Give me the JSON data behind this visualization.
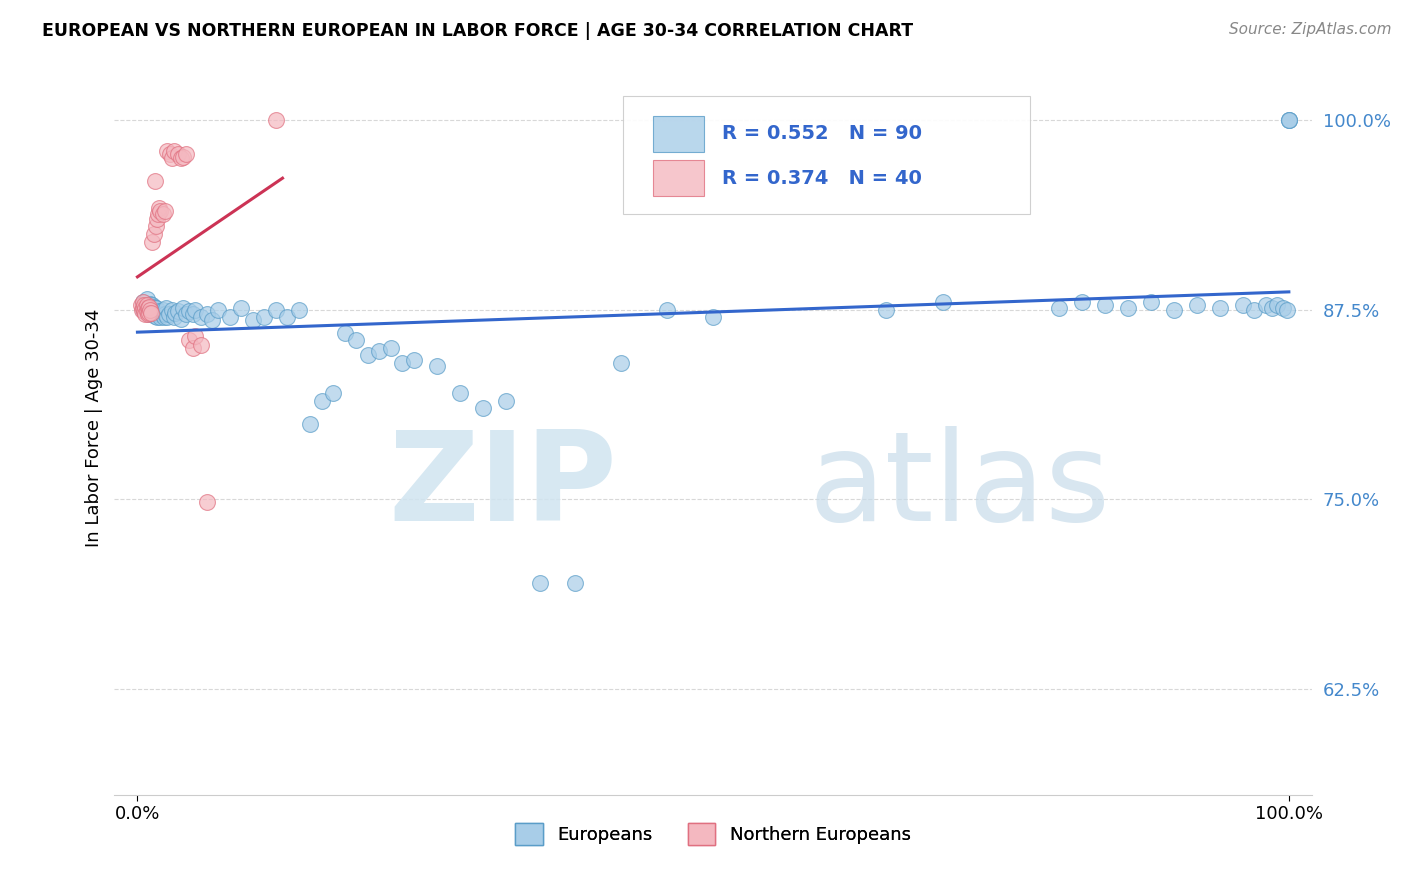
{
  "title": "EUROPEAN VS NORTHERN EUROPEAN IN LABOR FORCE | AGE 30-34 CORRELATION CHART",
  "source": "Source: ZipAtlas.com",
  "ylabel": "In Labor Force | Age 30-34",
  "y_tick_labels": [
    "62.5%",
    "75.0%",
    "87.5%",
    "100.0%"
  ],
  "y_tick_values": [
    0.625,
    0.75,
    0.875,
    1.0
  ],
  "xlim": [
    -0.02,
    1.02
  ],
  "ylim": [
    0.555,
    1.04
  ],
  "blue_color": "#a8cde8",
  "pink_color": "#f4b8c0",
  "blue_edge_color": "#5a9dc8",
  "pink_edge_color": "#e07080",
  "blue_line_color": "#3366cc",
  "pink_line_color": "#cc3355",
  "r_blue": 0.552,
  "n_blue": 90,
  "r_pink": 0.374,
  "n_pink": 40,
  "blue_x": [
    0.005,
    0.005,
    0.007,
    0.008,
    0.009,
    0.01,
    0.01,
    0.011,
    0.011,
    0.012,
    0.012,
    0.013,
    0.013,
    0.014,
    0.014,
    0.015,
    0.015,
    0.016,
    0.016,
    0.017,
    0.018,
    0.019,
    0.02,
    0.021,
    0.022,
    0.023,
    0.024,
    0.025,
    0.026,
    0.027,
    0.03,
    0.032,
    0.033,
    0.035,
    0.038,
    0.04,
    0.042,
    0.045,
    0.048,
    0.05,
    0.055,
    0.06,
    0.065,
    0.07,
    0.08,
    0.09,
    0.1,
    0.11,
    0.12,
    0.13,
    0.14,
    0.15,
    0.16,
    0.17,
    0.18,
    0.19,
    0.2,
    0.21,
    0.22,
    0.23,
    0.24,
    0.26,
    0.28,
    0.3,
    0.32,
    0.35,
    0.38,
    0.42,
    0.46,
    0.5,
    0.65,
    0.7,
    0.8,
    0.82,
    0.84,
    0.86,
    0.88,
    0.9,
    0.92,
    0.94,
    0.96,
    0.97,
    0.98,
    0.985,
    0.99,
    0.995,
    0.998,
    1.0,
    1.0,
    1.0
  ],
  "blue_y": [
    0.875,
    0.88,
    0.875,
    0.882,
    0.876,
    0.878,
    0.872,
    0.879,
    0.874,
    0.876,
    0.875,
    0.878,
    0.873,
    0.877,
    0.874,
    0.876,
    0.871,
    0.873,
    0.876,
    0.87,
    0.872,
    0.874,
    0.87,
    0.872,
    0.875,
    0.87,
    0.872,
    0.876,
    0.87,
    0.872,
    0.875,
    0.87,
    0.873,
    0.874,
    0.869,
    0.876,
    0.872,
    0.874,
    0.872,
    0.875,
    0.87,
    0.872,
    0.868,
    0.875,
    0.87,
    0.876,
    0.868,
    0.87,
    0.875,
    0.87,
    0.875,
    0.8,
    0.815,
    0.82,
    0.86,
    0.855,
    0.845,
    0.848,
    0.85,
    0.84,
    0.842,
    0.838,
    0.82,
    0.81,
    0.815,
    0.695,
    0.695,
    0.84,
    0.875,
    0.87,
    0.875,
    0.88,
    0.876,
    0.88,
    0.878,
    0.876,
    0.88,
    0.875,
    0.878,
    0.876,
    0.878,
    0.875,
    0.878,
    0.876,
    0.878,
    0.876,
    0.875,
    1.0,
    1.0,
    1.0
  ],
  "pink_x": [
    0.003,
    0.004,
    0.005,
    0.005,
    0.006,
    0.006,
    0.007,
    0.007,
    0.008,
    0.008,
    0.009,
    0.009,
    0.01,
    0.01,
    0.011,
    0.012,
    0.013,
    0.014,
    0.015,
    0.016,
    0.017,
    0.018,
    0.019,
    0.02,
    0.022,
    0.024,
    0.026,
    0.028,
    0.03,
    0.032,
    0.035,
    0.038,
    0.04,
    0.042,
    0.045,
    0.048,
    0.05,
    0.055,
    0.06,
    0.12
  ],
  "pink_y": [
    0.878,
    0.875,
    0.88,
    0.876,
    0.878,
    0.874,
    0.876,
    0.872,
    0.878,
    0.874,
    0.876,
    0.872,
    0.877,
    0.873,
    0.875,
    0.873,
    0.92,
    0.925,
    0.96,
    0.93,
    0.935,
    0.938,
    0.942,
    0.94,
    0.938,
    0.94,
    0.98,
    0.978,
    0.975,
    0.98,
    0.978,
    0.975,
    0.976,
    0.978,
    0.855,
    0.85,
    0.858,
    0.852,
    0.748,
    1.0
  ],
  "watermark_zip": "ZIP",
  "watermark_atlas": "atlas",
  "background_color": "#ffffff",
  "grid_color": "#d8d8d8"
}
